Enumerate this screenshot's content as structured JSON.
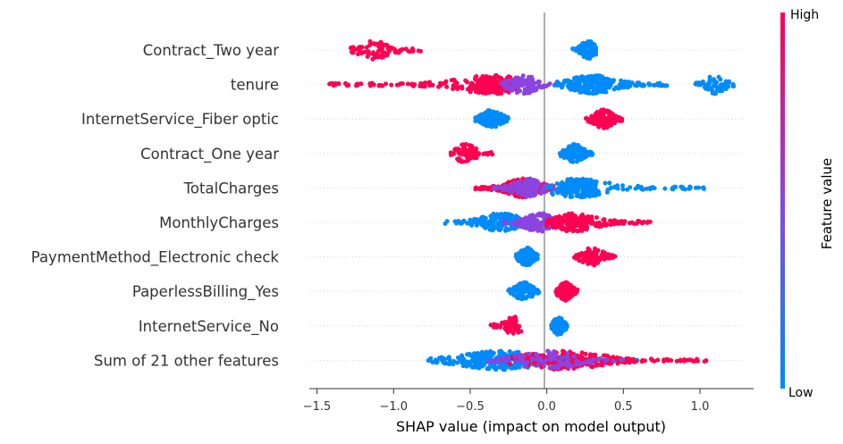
{
  "chart_data": {
    "type": "scatter",
    "subtype": "shap-beeswarm",
    "features": [
      {
        "name": "Contract_Two year",
        "clusters": [
          {
            "from": -1.28,
            "to": -0.82,
            "core": -1.12,
            "color": "high",
            "n": 90
          },
          {
            "from": 0.16,
            "to": 0.32,
            "core": 0.27,
            "color": "low",
            "n": 90
          }
        ]
      },
      {
        "name": "tenure",
        "clusters": [
          {
            "from": -1.42,
            "to": -0.2,
            "core": -0.35,
            "color": "high",
            "n": 260
          },
          {
            "from": -0.3,
            "to": 0.1,
            "core": -0.15,
            "color": "mid",
            "n": 120
          },
          {
            "from": 0.05,
            "to": 0.8,
            "core": 0.3,
            "color": "low",
            "n": 220
          },
          {
            "from": 0.97,
            "to": 1.22,
            "core": 1.1,
            "color": "low",
            "n": 60
          }
        ]
      },
      {
        "name": "InternetService_Fiber optic",
        "clusters": [
          {
            "from": -0.47,
            "to": -0.24,
            "core": -0.36,
            "color": "low",
            "n": 140
          },
          {
            "from": 0.25,
            "to": 0.49,
            "core": 0.37,
            "color": "high",
            "n": 140
          }
        ]
      },
      {
        "name": "Contract_One year",
        "clusters": [
          {
            "from": -0.63,
            "to": -0.34,
            "core": -0.53,
            "color": "high",
            "n": 80
          },
          {
            "from": 0.08,
            "to": 0.3,
            "core": 0.18,
            "color": "low",
            "n": 130
          }
        ]
      },
      {
        "name": "TotalCharges",
        "clusters": [
          {
            "from": -0.47,
            "to": 0.05,
            "core": -0.15,
            "color": "high",
            "n": 220
          },
          {
            "from": -0.35,
            "to": 0.05,
            "core": -0.12,
            "color": "mid",
            "n": 120
          },
          {
            "from": 0.0,
            "to": 1.03,
            "core": 0.2,
            "color": "low",
            "n": 220
          }
        ]
      },
      {
        "name": "MonthlyCharges",
        "clusters": [
          {
            "from": -0.69,
            "to": -0.1,
            "core": -0.3,
            "color": "low",
            "n": 150
          },
          {
            "from": -0.3,
            "to": 0.15,
            "core": -0.05,
            "color": "mid",
            "n": 150
          },
          {
            "from": 0.0,
            "to": 0.68,
            "core": 0.18,
            "color": "high",
            "n": 200
          }
        ]
      },
      {
        "name": "PaymentMethod_Electronic check",
        "clusters": [
          {
            "from": -0.2,
            "to": -0.06,
            "core": -0.13,
            "color": "low",
            "n": 120
          },
          {
            "from": 0.18,
            "to": 0.45,
            "core": 0.3,
            "color": "high",
            "n": 100
          }
        ]
      },
      {
        "name": "PaperlessBilling_Yes",
        "clusters": [
          {
            "from": -0.25,
            "to": -0.05,
            "core": -0.15,
            "color": "low",
            "n": 110
          },
          {
            "from": 0.06,
            "to": 0.2,
            "core": 0.12,
            "color": "high",
            "n": 140
          }
        ]
      },
      {
        "name": "InternetService_No",
        "clusters": [
          {
            "from": -0.38,
            "to": -0.16,
            "core": -0.22,
            "color": "high",
            "n": 60
          },
          {
            "from": 0.03,
            "to": 0.14,
            "core": 0.08,
            "color": "low",
            "n": 110
          }
        ]
      },
      {
        "name": "Sum of 21 other features",
        "clusters": [
          {
            "from": -0.8,
            "to": 0.6,
            "core": -0.3,
            "color": "low",
            "n": 340
          },
          {
            "from": -0.3,
            "to": 1.04,
            "core": 0.1,
            "color": "high",
            "n": 240
          },
          {
            "from": -0.4,
            "to": 0.5,
            "core": 0.0,
            "color": "mid",
            "n": 90
          }
        ]
      }
    ],
    "xlabel": "SHAP value (impact on model output)",
    "xlim": [
      -1.55,
      1.35
    ],
    "xticks": [
      -1.5,
      -1.0,
      -0.5,
      0.0,
      0.5,
      1.0
    ],
    "xtick_labels": [
      "−1.5",
      "−1.0",
      "−0.5",
      "0.0",
      "0.5",
      "1.0"
    ],
    "colorbar": {
      "title": "Feature value",
      "high_label": "High",
      "low_label": "Low",
      "high_color": "#ff0052",
      "mid_color": "#8b44e0",
      "low_color": "#008bfb"
    },
    "zero_line_color": "#999999",
    "grid": false
  }
}
